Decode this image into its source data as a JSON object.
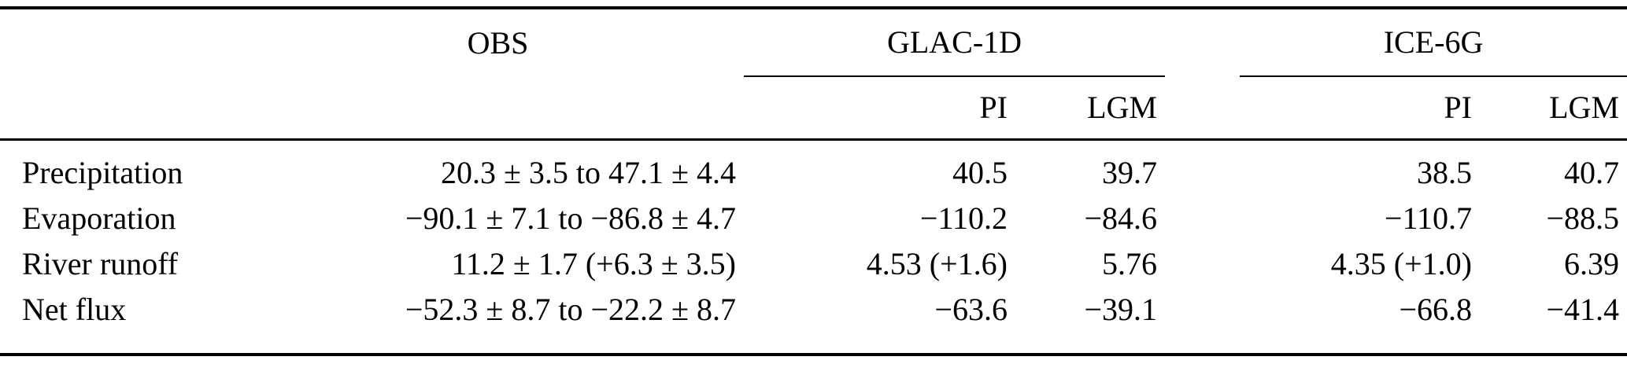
{
  "table": {
    "header": {
      "obs": "OBS",
      "glac": "GLAC-1D",
      "ice": "ICE-6G",
      "pi": "PI",
      "lgm": "LGM"
    },
    "rows": [
      {
        "label": "Precipitation",
        "obs": "20.3 ± 3.5 to 47.1 ± 4.4",
        "glac_pi": "40.5",
        "glac_lgm": "39.7",
        "ice_pi": "38.5",
        "ice_lgm": "40.7"
      },
      {
        "label": "Evaporation",
        "obs": "−90.1 ± 7.1 to −86.8 ± 4.7",
        "glac_pi": "−110.2",
        "glac_lgm": "−84.6",
        "ice_pi": "−110.7",
        "ice_lgm": "−88.5"
      },
      {
        "label": "River runoff",
        "obs": "11.2 ± 1.7 (+6.3 ± 3.5)",
        "glac_pi": "4.53 (+1.6)",
        "glac_lgm": "5.76",
        "ice_pi": "4.35 (+1.0)",
        "ice_lgm": "6.39"
      },
      {
        "label": "Net flux",
        "obs": "−52.3 ± 8.7 to −22.2 ± 8.7",
        "glac_pi": "−63.6",
        "glac_lgm": "−39.1",
        "ice_pi": "−66.8",
        "ice_lgm": "−41.4"
      }
    ]
  }
}
